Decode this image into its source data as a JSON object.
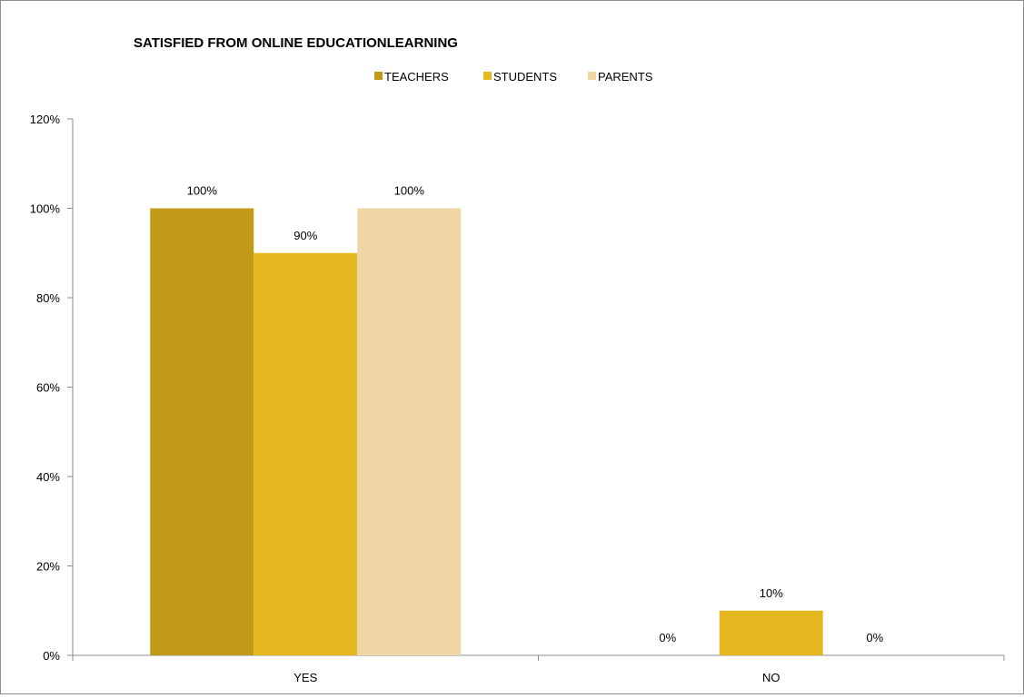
{
  "chart_data": {
    "type": "bar",
    "title": "SATISFIED FROM ONLINE EDUCATIONLEARNING",
    "categories": [
      "YES",
      "NO"
    ],
    "series": [
      {
        "name": "TEACHERS",
        "values": [
          100,
          0
        ],
        "labels": [
          "100%",
          "0%"
        ],
        "color": "#C19B17"
      },
      {
        "name": "STUDENTS",
        "values": [
          90,
          10
        ],
        "labels": [
          "90%",
          "10%"
        ],
        "color": "#E6B820"
      },
      {
        "name": "PARENTS",
        "values": [
          100,
          0
        ],
        "labels": [
          "100%",
          "0%"
        ],
        "color": "#EFD6A4"
      }
    ],
    "y_ticks": [
      "0%",
      "20%",
      "40%",
      "60%",
      "80%",
      "100%",
      "120%"
    ],
    "ylim": [
      0,
      120
    ],
    "grid": false,
    "legend_position": "top-center"
  }
}
